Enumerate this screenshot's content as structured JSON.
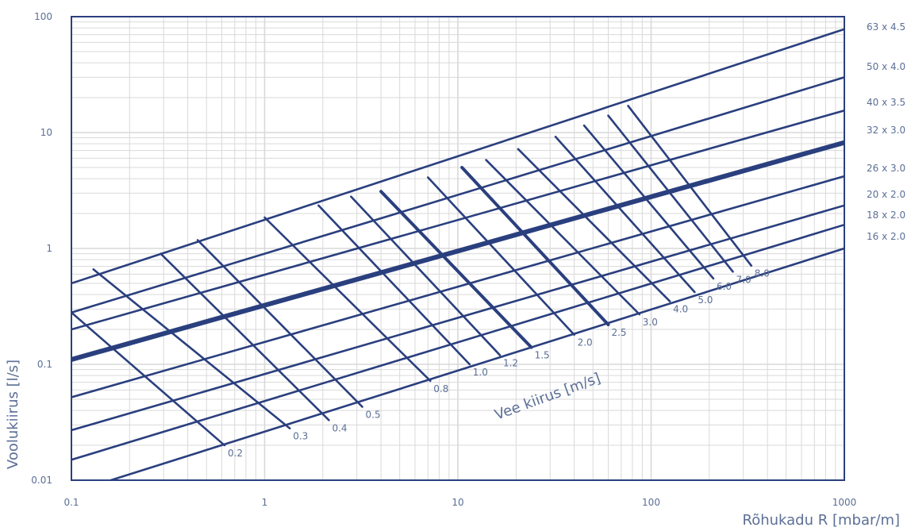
{
  "chart_data": {
    "type": "line",
    "xlabel": "Rõhukadu R  [mbar/m]",
    "ylabel": "Voolukiirus [l/s]",
    "velocity_axis_label": "Vee kiirus [m/s]",
    "x_scale": "log",
    "y_scale": "log",
    "xlim": [
      0.1,
      1000
    ],
    "ylim": [
      0.01,
      100
    ],
    "x_ticks": [
      "0.1",
      "1",
      "10",
      "100",
      "1000"
    ],
    "y_ticks": [
      "0.01",
      "0.1",
      "1",
      "10",
      "100"
    ],
    "grid": true,
    "colors": {
      "line": "#2a3f7e",
      "grid": "#d9d9d9",
      "text": "#5b6f96"
    },
    "series": [
      {
        "name": "16 x 2.0",
        "x": [
          0.16,
          1000
        ],
        "y": [
          0.01,
          1.0
        ]
      },
      {
        "name": "18 x 2.0",
        "x": [
          0.1,
          1000
        ],
        "y": [
          0.015,
          1.6
        ]
      },
      {
        "name": "20 x 2.0",
        "x": [
          0.1,
          1000
        ],
        "y": [
          0.027,
          2.35
        ]
      },
      {
        "name": "26 x 3.0",
        "x": [
          0.1,
          1000
        ],
        "y": [
          0.052,
          4.2
        ]
      },
      {
        "name": "32 x 3.0",
        "x": [
          0.1,
          1000
        ],
        "y": [
          0.11,
          8.2
        ],
        "emphasis": true
      },
      {
        "name": "40 x 3.5",
        "x": [
          0.1,
          1000
        ],
        "y": [
          0.2,
          15.5
        ]
      },
      {
        "name": "50 x 4.0",
        "x": [
          0.1,
          1000
        ],
        "y": [
          0.28,
          30
        ]
      },
      {
        "name": "63 x 4.5",
        "x": [
          0.1,
          1000
        ],
        "y": [
          0.5,
          78
        ]
      }
    ],
    "velocity_lines": [
      {
        "label": "0.2",
        "x1": 0.1,
        "y1": 0.28,
        "x2": 0.62,
        "y2": 0.02
      },
      {
        "label": "0.3",
        "x1": 0.13,
        "y1": 0.66,
        "x2": 1.35,
        "y2": 0.028
      },
      {
        "label": "0.4",
        "x1": 0.29,
        "y1": 0.9,
        "x2": 2.15,
        "y2": 0.033
      },
      {
        "label": "0.5",
        "x1": 0.45,
        "y1": 1.18,
        "x2": 3.2,
        "y2": 0.043
      },
      {
        "label": "0.8",
        "x1": 1.0,
        "y1": 1.85,
        "x2": 7.2,
        "y2": 0.072
      },
      {
        "label": "1.0",
        "x1": 1.9,
        "y1": 2.35,
        "x2": 11.5,
        "y2": 0.1
      },
      {
        "label": "1.2",
        "x1": 2.8,
        "y1": 2.8,
        "x2": 16.5,
        "y2": 0.12
      },
      {
        "label": "1.5",
        "x1": 4.0,
        "y1": 3.1,
        "x2": 24,
        "y2": 0.14
      },
      {
        "label": "2.0",
        "x1": 7.0,
        "y1": 4.1,
        "x2": 40,
        "y2": 0.18
      },
      {
        "label": "2.5",
        "x1": 10.5,
        "y1": 5.0,
        "x2": 60,
        "y2": 0.22
      },
      {
        "label": "3.0",
        "x1": 14.0,
        "y1": 5.8,
        "x2": 87,
        "y2": 0.27
      },
      {
        "label": "4.0",
        "x1": 20.5,
        "y1": 7.2,
        "x2": 125,
        "y2": 0.35
      },
      {
        "label": "5.0",
        "x1": 32,
        "y1": 9.2,
        "x2": 168,
        "y2": 0.42
      },
      {
        "label": "6.0",
        "x1": 45,
        "y1": 11.5,
        "x2": 210,
        "y2": 0.55
      },
      {
        "label": "7.0",
        "x1": 60,
        "y1": 14.0,
        "x2": 265,
        "y2": 0.63
      },
      {
        "label": "8.0",
        "x1": 76,
        "y1": 17.0,
        "x2": 330,
        "y2": 0.71
      }
    ]
  }
}
